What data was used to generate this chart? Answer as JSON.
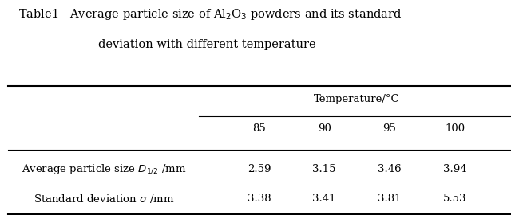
{
  "title_line1": "Table1   Average particle size of AℓO₃ powders and its standard",
  "title_line2": "deviation with different temperature",
  "col_header_group": "Temperature/°C",
  "col_headers": [
    "85",
    "90",
    "95",
    "100"
  ],
  "row_labels": [
    "Average particle size D₁/₂ /mm",
    "Standard deviation σ /mm"
  ],
  "data": [
    [
      "2.59",
      "3.15",
      "3.46",
      "3.94"
    ],
    [
      "3.38",
      "3.41",
      "3.81",
      "5.53"
    ]
  ],
  "bg_color": "#ffffff",
  "text_color": "#000000",
  "font_size": 9.5,
  "title_font_size": 10.5
}
